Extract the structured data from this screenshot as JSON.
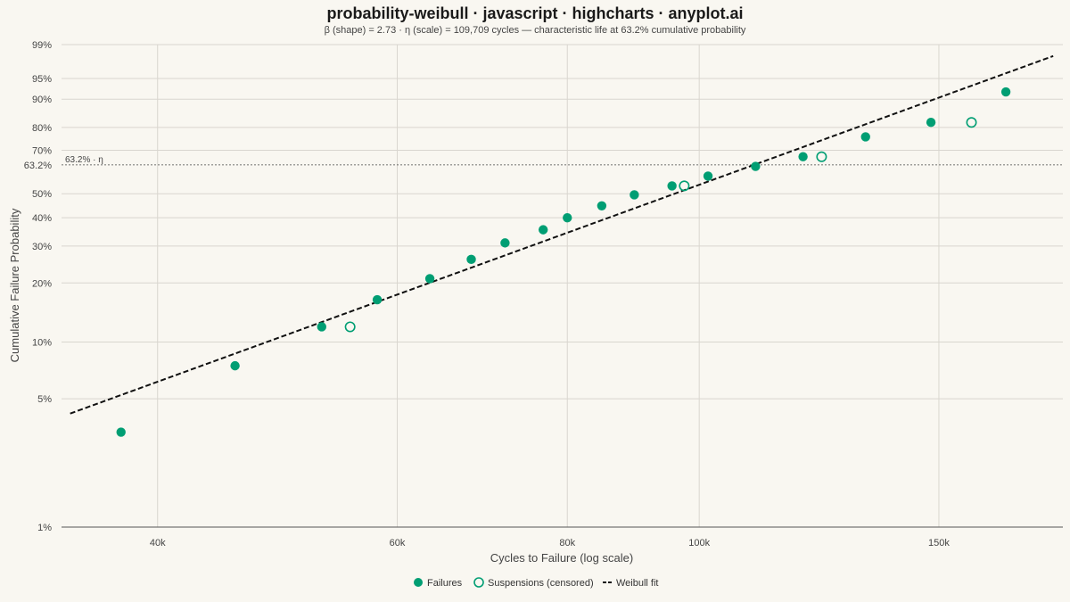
{
  "chart_data": {
    "type": "scatter",
    "title": "probability-weibull · javascript · highcharts · anyplot.ai",
    "subtitle": "β (shape) = 2.73 · η (scale) = 109,709 cycles — characteristic life at 63.2% cumulative probability",
    "xlabel": "Cycles to Failure (log scale)",
    "ylabel": "Cumulative Failure Probability",
    "x_scale": "log",
    "y_scale": "weibull-probability",
    "xlim": [
      34000,
      185000
    ],
    "ylim": [
      0.01,
      0.99
    ],
    "x_ticks": [
      {
        "value": 40000,
        "label": "40k"
      },
      {
        "value": 60000,
        "label": "60k"
      },
      {
        "value": 80000,
        "label": "80k"
      },
      {
        "value": 100000,
        "label": "100k"
      },
      {
        "value": 150000,
        "label": "150k"
      }
    ],
    "y_ticks": [
      {
        "value": 0.01,
        "label": "1%"
      },
      {
        "value": 0.05,
        "label": "5%"
      },
      {
        "value": 0.1,
        "label": "10%"
      },
      {
        "value": 0.2,
        "label": "20%"
      },
      {
        "value": 0.3,
        "label": "30%"
      },
      {
        "value": 0.4,
        "label": "40%"
      },
      {
        "value": 0.5,
        "label": "50%"
      },
      {
        "value": 0.632,
        "label": "63.2%"
      },
      {
        "value": 0.7,
        "label": "70%"
      },
      {
        "value": 0.8,
        "label": "80%"
      },
      {
        "value": 0.9,
        "label": "90%"
      },
      {
        "value": 0.95,
        "label": "95%"
      },
      {
        "value": 0.99,
        "label": "99%"
      }
    ],
    "reference_line": {
      "value": 0.632,
      "label": "63.2% · η"
    },
    "grid": true,
    "legend_position": "bottom-center",
    "series": [
      {
        "name": "Failures",
        "marker": "filled-circle",
        "color": "#009e73",
        "points": [
          {
            "x": 37600,
            "y": 0.033
          },
          {
            "x": 45600,
            "y": 0.075
          },
          {
            "x": 52800,
            "y": 0.12
          },
          {
            "x": 58000,
            "y": 0.165
          },
          {
            "x": 63400,
            "y": 0.21
          },
          {
            "x": 68000,
            "y": 0.26
          },
          {
            "x": 72000,
            "y": 0.31
          },
          {
            "x": 76800,
            "y": 0.355
          },
          {
            "x": 80000,
            "y": 0.4
          },
          {
            "x": 84800,
            "y": 0.448
          },
          {
            "x": 89600,
            "y": 0.495
          },
          {
            "x": 95500,
            "y": 0.535
          },
          {
            "x": 101500,
            "y": 0.58
          },
          {
            "x": 110000,
            "y": 0.625
          },
          {
            "x": 119200,
            "y": 0.67
          },
          {
            "x": 132500,
            "y": 0.76
          },
          {
            "x": 148000,
            "y": 0.82
          },
          {
            "x": 168000,
            "y": 0.92
          }
        ]
      },
      {
        "name": "Suspensions (censored)",
        "marker": "hollow-circle",
        "color": "#009e73",
        "points": [
          {
            "x": 55400,
            "y": 0.12
          },
          {
            "x": 97500,
            "y": 0.535
          },
          {
            "x": 123000,
            "y": 0.67
          },
          {
            "x": 158500,
            "y": 0.82
          }
        ]
      },
      {
        "name": "Weibull fit",
        "marker": "dashed-line",
        "color": "#111111",
        "beta": 2.73,
        "eta": 109709
      }
    ]
  }
}
